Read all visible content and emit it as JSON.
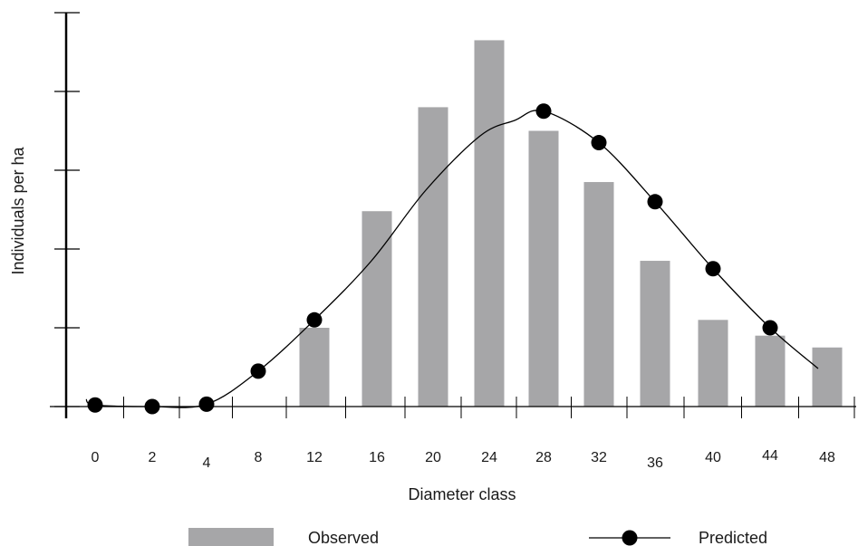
{
  "chart_data": {
    "type": "bar",
    "title": "",
    "xlabel": "Diameter class",
    "ylabel": "Individuals per ha",
    "categories": [
      "0",
      "2",
      "4",
      "8",
      "12",
      "16",
      "20",
      "24",
      "28",
      "32",
      "36",
      "40",
      "44",
      "48"
    ],
    "ylim": [
      0,
      5
    ],
    "yticks_labeled": false,
    "grid": false,
    "legend_position": "bottom",
    "colors": {
      "observed": "#a6a6a8",
      "predicted": "#000000"
    },
    "series": [
      {
        "name": "Observed",
        "type": "bar",
        "values": [
          0,
          0,
          0,
          0,
          1.0,
          2.48,
          3.8,
          4.65,
          3.5,
          2.85,
          1.85,
          1.1,
          0.9,
          0.75
        ]
      },
      {
        "name": "Predicted",
        "type": "line",
        "values": [
          0.02,
          0.0,
          0.03,
          0.45,
          1.1,
          null,
          null,
          null,
          3.75,
          3.35,
          2.6,
          1.75,
          1.0,
          null
        ]
      }
    ]
  }
}
